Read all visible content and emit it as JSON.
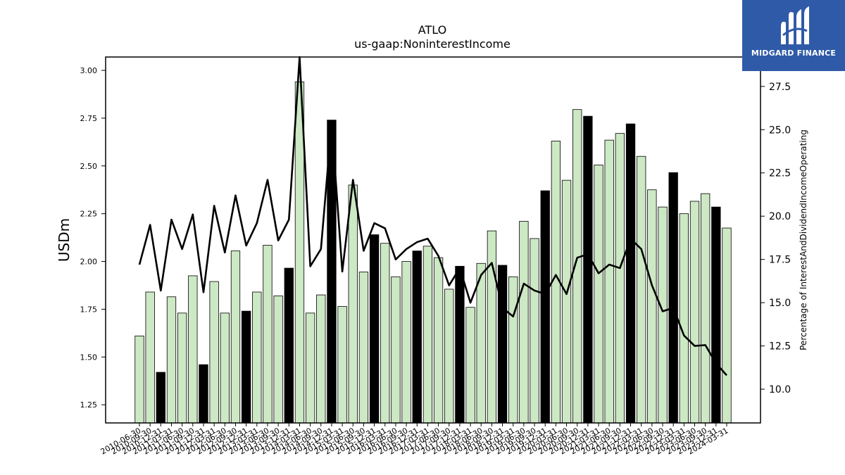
{
  "logo": {
    "text": "MIDGARD FINANCE",
    "background": "#2f5aa8"
  },
  "chart_data": {
    "type": "bar",
    "title": "ATLO",
    "subtitle": "us-gaap:NoninterestIncome",
    "ylabel": "USDm",
    "y2label": "Percentage of InterestAndDividendIncomeOperating",
    "ylim": [
      1.155,
      3.07
    ],
    "y2lim": [
      8.05,
      29.2
    ],
    "yticks": [
      "1.25",
      "1.50",
      "1.75",
      "2.00",
      "2.25",
      "2.50",
      "2.75",
      "3.00"
    ],
    "y2ticks": [
      "10.0",
      "12.5",
      "15.0",
      "17.5",
      "20.0",
      "22.5",
      "25.0",
      "27.5"
    ],
    "grid": false,
    "colors": {
      "bar": "#cce8c4",
      "highlight_bar": "#000000",
      "line": "#000000"
    },
    "categories": [
      "2010-06-30",
      "2010-09-30",
      "2010-12-31",
      "2011-03-31",
      "2011-06-30",
      "2011-09-30",
      "2011-12-31",
      "2012-03-31",
      "2012-06-30",
      "2012-09-30",
      "2012-12-31",
      "2013-03-31",
      "2013-06-30",
      "2013-09-30",
      "2013-12-31",
      "2014-03-31",
      "2014-06-30",
      "2014-09-30",
      "2014-12-31",
      "2015-03-31",
      "2015-06-30",
      "2015-09-30",
      "2015-12-31",
      "2016-03-31",
      "2016-06-30",
      "2016-09-30",
      "2016-12-31",
      "2017-03-31",
      "2017-06-30",
      "2017-09-30",
      "2017-12-31",
      "2018-03-31",
      "2018-06-30",
      "2018-09-30",
      "2018-12-31",
      "2019-03-31",
      "2019-06-30",
      "2019-09-30",
      "2019-12-31",
      "2020-03-31",
      "2020-06-30",
      "2020-09-30",
      "2020-12-31",
      "2021-03-31",
      "2021-06-30",
      "2021-09-30",
      "2021-12-31",
      "2022-03-31",
      "2022-06-30",
      "2022-09-30",
      "2022-12-31",
      "2023-03-31",
      "2023-06-30",
      "2023-09-30",
      "2023-12-31",
      "2024-03-31"
    ],
    "series": [
      {
        "type": "bar",
        "values": [
          1.61,
          1.84,
          1.42,
          1.815,
          1.73,
          1.925,
          1.46,
          1.895,
          1.73,
          2.055,
          1.74,
          1.84,
          2.085,
          1.82,
          1.965,
          2.94,
          1.73,
          1.825,
          2.74,
          1.765,
          2.4,
          1.945,
          2.14,
          2.095,
          1.92,
          2.0,
          2.055,
          2.08,
          2.02,
          1.855,
          1.975,
          1.76,
          1.99,
          2.16,
          1.98,
          1.92,
          2.21,
          2.12,
          2.37,
          2.63,
          2.425,
          2.795,
          2.76,
          2.505,
          2.635,
          2.67,
          2.72,
          2.55,
          2.375,
          2.285,
          2.465,
          2.25,
          2.315,
          2.355,
          2.285,
          2.175
        ],
        "highlight": [
          false,
          false,
          true,
          false,
          false,
          false,
          true,
          false,
          false,
          false,
          true,
          false,
          false,
          false,
          true,
          false,
          false,
          false,
          true,
          false,
          false,
          false,
          true,
          false,
          false,
          false,
          true,
          false,
          false,
          false,
          true,
          false,
          false,
          false,
          true,
          false,
          false,
          false,
          true,
          false,
          false,
          false,
          true,
          false,
          false,
          false,
          true,
          false,
          false,
          false,
          true,
          false,
          false,
          false,
          true,
          false
        ]
      },
      {
        "type": "line",
        "axis": "right",
        "values": [
          17.2,
          19.5,
          15.7,
          19.8,
          18.1,
          20.1,
          15.6,
          20.6,
          17.9,
          21.2,
          18.3,
          19.6,
          22.1,
          18.6,
          19.8,
          29.2,
          17.1,
          18.1,
          25.4,
          16.8,
          22.1,
          18.0,
          19.6,
          19.3,
          17.5,
          18.1,
          18.5,
          18.7,
          17.7,
          16.0,
          17.0,
          15.0,
          16.6,
          17.3,
          14.7,
          14.2,
          16.1,
          15.7,
          15.5,
          16.6,
          15.5,
          17.6,
          17.8,
          16.7,
          17.2,
          17.0,
          18.7,
          18.1,
          16.0,
          14.5,
          14.7,
          13.1,
          12.5,
          12.55,
          11.5,
          10.8
        ]
      }
    ]
  }
}
